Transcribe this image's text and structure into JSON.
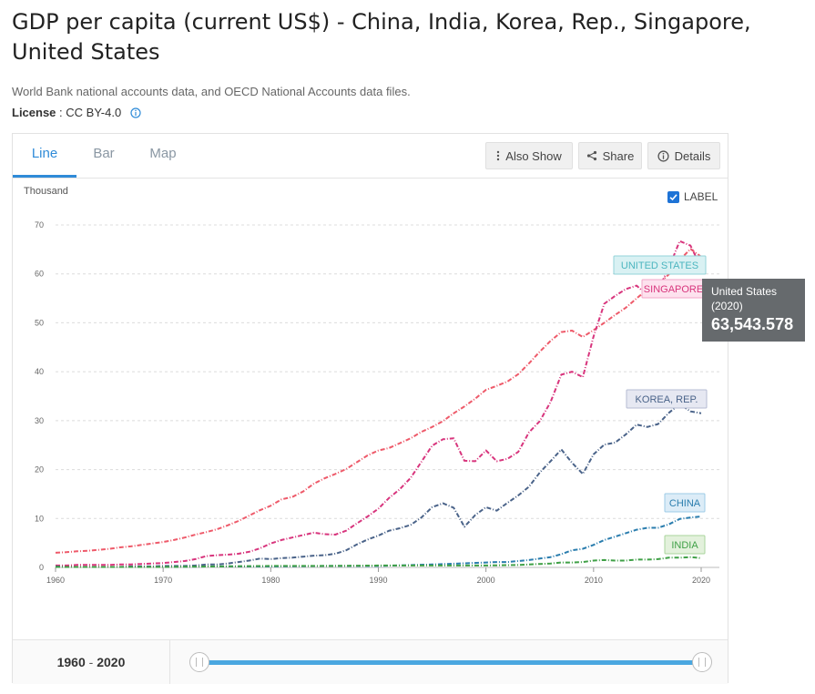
{
  "header": {
    "title": "GDP per capita (current US$) - China, India, Korea, Rep., Singapore, United States",
    "source": "World Bank national accounts data, and OECD National Accounts data files.",
    "license_label": "License",
    "license_sep": " : ",
    "license_value": "CC BY-4.0",
    "info_icon": "info-circle-icon"
  },
  "tabs": [
    {
      "label": "Line",
      "active": true
    },
    {
      "label": "Bar",
      "active": false
    },
    {
      "label": "Map",
      "active": false
    }
  ],
  "toolbar": {
    "also_show": "Also Show",
    "share": "Share",
    "details": "Details",
    "also_show_icon": "vertical-dots-icon",
    "share_icon": "share-icon",
    "details_icon": "info-circle-icon"
  },
  "label_toggle": {
    "label": "LABEL",
    "checked": true
  },
  "range": {
    "start": "1960",
    "sep": " - ",
    "end": "2020"
  },
  "tooltip": {
    "name": "United States",
    "year": "(2020)",
    "value": "63,543.578"
  },
  "chart_data": {
    "type": "line",
    "title": "",
    "xlabel": "",
    "ylabel": "Thousand",
    "xlim": [
      1960,
      2020
    ],
    "ylim": [
      0,
      70
    ],
    "x_ticks": [
      "1960",
      "1970",
      "1980",
      "1990",
      "2000",
      "2010",
      "2020"
    ],
    "y_ticks": [
      "0",
      "10",
      "20",
      "30",
      "40",
      "50",
      "60",
      "70"
    ],
    "grid": "horizontal dashed",
    "series": [
      {
        "name": "UNITED STATES",
        "color": "#ee5a6a",
        "label_bg": "#d9f1f3",
        "label_border": "#93d3d8",
        "label_color": "#4bb5bf",
        "values": [
          [
            1960,
            3.0
          ],
          [
            1961,
            3.1
          ],
          [
            1962,
            3.3
          ],
          [
            1963,
            3.4
          ],
          [
            1964,
            3.6
          ],
          [
            1965,
            3.8
          ],
          [
            1966,
            4.1
          ],
          [
            1967,
            4.3
          ],
          [
            1968,
            4.6
          ],
          [
            1969,
            4.9
          ],
          [
            1970,
            5.2
          ],
          [
            1971,
            5.6
          ],
          [
            1972,
            6.1
          ],
          [
            1973,
            6.7
          ],
          [
            1974,
            7.2
          ],
          [
            1975,
            7.8
          ],
          [
            1976,
            8.6
          ],
          [
            1977,
            9.5
          ],
          [
            1978,
            10.6
          ],
          [
            1979,
            11.7
          ],
          [
            1980,
            12.6
          ],
          [
            1981,
            13.9
          ],
          [
            1982,
            14.4
          ],
          [
            1983,
            15.5
          ],
          [
            1984,
            17.1
          ],
          [
            1985,
            18.2
          ],
          [
            1986,
            19.1
          ],
          [
            1987,
            20.1
          ],
          [
            1988,
            21.5
          ],
          [
            1989,
            22.9
          ],
          [
            1990,
            23.9
          ],
          [
            1991,
            24.4
          ],
          [
            1992,
            25.4
          ],
          [
            1993,
            26.4
          ],
          [
            1994,
            27.7
          ],
          [
            1995,
            28.7
          ],
          [
            1996,
            29.9
          ],
          [
            1997,
            31.5
          ],
          [
            1998,
            32.9
          ],
          [
            1999,
            34.5
          ],
          [
            2000,
            36.3
          ],
          [
            2001,
            37.1
          ],
          [
            2002,
            38.0
          ],
          [
            2003,
            39.5
          ],
          [
            2004,
            41.7
          ],
          [
            2005,
            44.1
          ],
          [
            2006,
            46.3
          ],
          [
            2007,
            48.1
          ],
          [
            2008,
            48.4
          ],
          [
            2009,
            47.1
          ],
          [
            2010,
            48.5
          ],
          [
            2011,
            50.0
          ],
          [
            2012,
            51.6
          ],
          [
            2013,
            53.1
          ],
          [
            2014,
            55.0
          ],
          [
            2015,
            56.8
          ],
          [
            2016,
            57.9
          ],
          [
            2017,
            59.9
          ],
          [
            2018,
            62.8
          ],
          [
            2019,
            65.1
          ],
          [
            2020,
            63.5
          ]
        ]
      },
      {
        "name": "SINGAPORE",
        "color": "#d8357d",
        "label_bg": "#fde2ee",
        "label_border": "#f2a7c8",
        "label_color": "#d8357d",
        "values": [
          [
            1960,
            0.4
          ],
          [
            1961,
            0.4
          ],
          [
            1962,
            0.5
          ],
          [
            1963,
            0.5
          ],
          [
            1964,
            0.5
          ],
          [
            1965,
            0.5
          ],
          [
            1966,
            0.6
          ],
          [
            1967,
            0.6
          ],
          [
            1968,
            0.7
          ],
          [
            1969,
            0.8
          ],
          [
            1970,
            0.9
          ],
          [
            1971,
            1.1
          ],
          [
            1972,
            1.3
          ],
          [
            1973,
            1.7
          ],
          [
            1974,
            2.3
          ],
          [
            1975,
            2.5
          ],
          [
            1976,
            2.6
          ],
          [
            1977,
            2.8
          ],
          [
            1978,
            3.2
          ],
          [
            1979,
            3.9
          ],
          [
            1980,
            4.9
          ],
          [
            1981,
            5.6
          ],
          [
            1982,
            6.1
          ],
          [
            1983,
            6.6
          ],
          [
            1984,
            7.1
          ],
          [
            1985,
            6.8
          ],
          [
            1986,
            6.7
          ],
          [
            1987,
            7.5
          ],
          [
            1988,
            9.0
          ],
          [
            1989,
            10.4
          ],
          [
            1990,
            12.0
          ],
          [
            1991,
            14.2
          ],
          [
            1992,
            16.0
          ],
          [
            1993,
            18.3
          ],
          [
            1994,
            21.6
          ],
          [
            1995,
            24.9
          ],
          [
            1996,
            26.2
          ],
          [
            1997,
            26.4
          ],
          [
            1998,
            21.8
          ],
          [
            1999,
            21.7
          ],
          [
            2000,
            23.9
          ],
          [
            2001,
            21.7
          ],
          [
            2002,
            22.2
          ],
          [
            2003,
            23.6
          ],
          [
            2004,
            27.6
          ],
          [
            2005,
            29.9
          ],
          [
            2006,
            33.8
          ],
          [
            2007,
            39.4
          ],
          [
            2008,
            40.0
          ],
          [
            2009,
            38.9
          ],
          [
            2010,
            47.2
          ],
          [
            2011,
            53.9
          ],
          [
            2012,
            55.5
          ],
          [
            2013,
            56.9
          ],
          [
            2014,
            57.6
          ],
          [
            2015,
            55.6
          ],
          [
            2016,
            56.8
          ],
          [
            2017,
            61.2
          ],
          [
            2018,
            66.7
          ],
          [
            2019,
            65.8
          ],
          [
            2020,
            61.3
          ]
        ]
      },
      {
        "name": "KOREA, REP.",
        "color": "#4a6389",
        "label_bg": "#e6e8f2",
        "label_border": "#b6bbd3",
        "label_color": "#4a6389",
        "values": [
          [
            1960,
            0.2
          ],
          [
            1961,
            0.1
          ],
          [
            1962,
            0.1
          ],
          [
            1963,
            0.1
          ],
          [
            1964,
            0.1
          ],
          [
            1965,
            0.1
          ],
          [
            1966,
            0.1
          ],
          [
            1967,
            0.2
          ],
          [
            1968,
            0.2
          ],
          [
            1969,
            0.2
          ],
          [
            1970,
            0.3
          ],
          [
            1971,
            0.3
          ],
          [
            1972,
            0.3
          ],
          [
            1973,
            0.4
          ],
          [
            1974,
            0.6
          ],
          [
            1975,
            0.6
          ],
          [
            1976,
            0.8
          ],
          [
            1977,
            1.1
          ],
          [
            1978,
            1.4
          ],
          [
            1979,
            1.8
          ],
          [
            1980,
            1.7
          ],
          [
            1981,
            1.9
          ],
          [
            1982,
            2.0
          ],
          [
            1983,
            2.2
          ],
          [
            1984,
            2.4
          ],
          [
            1985,
            2.5
          ],
          [
            1986,
            2.8
          ],
          [
            1987,
            3.5
          ],
          [
            1988,
            4.7
          ],
          [
            1989,
            5.7
          ],
          [
            1990,
            6.5
          ],
          [
            1991,
            7.5
          ],
          [
            1992,
            8.0
          ],
          [
            1993,
            8.7
          ],
          [
            1994,
            10.2
          ],
          [
            1995,
            12.3
          ],
          [
            1996,
            13.1
          ],
          [
            1997,
            12.2
          ],
          [
            1998,
            8.3
          ],
          [
            1999,
            10.7
          ],
          [
            2000,
            12.3
          ],
          [
            2001,
            11.6
          ],
          [
            2002,
            13.2
          ],
          [
            2003,
            14.7
          ],
          [
            2004,
            16.5
          ],
          [
            2005,
            19.4
          ],
          [
            2006,
            21.7
          ],
          [
            2007,
            24.1
          ],
          [
            2008,
            21.4
          ],
          [
            2009,
            19.1
          ],
          [
            2010,
            23.1
          ],
          [
            2011,
            25.1
          ],
          [
            2012,
            25.5
          ],
          [
            2013,
            27.2
          ],
          [
            2014,
            29.2
          ],
          [
            2015,
            28.7
          ],
          [
            2016,
            29.3
          ],
          [
            2017,
            31.6
          ],
          [
            2018,
            33.4
          ],
          [
            2019,
            31.9
          ],
          [
            2020,
            31.5
          ]
        ]
      },
      {
        "name": "CHINA",
        "color": "#2a7dae",
        "label_bg": "#dcecf7",
        "label_border": "#9ccbe7",
        "label_color": "#2a7dae",
        "values": [
          [
            1960,
            0.1
          ],
          [
            1965,
            0.1
          ],
          [
            1970,
            0.1
          ],
          [
            1975,
            0.2
          ],
          [
            1980,
            0.2
          ],
          [
            1985,
            0.3
          ],
          [
            1990,
            0.3
          ],
          [
            1995,
            0.6
          ],
          [
            2000,
            1.0
          ],
          [
            2001,
            1.1
          ],
          [
            2002,
            1.1
          ],
          [
            2003,
            1.3
          ],
          [
            2004,
            1.5
          ],
          [
            2005,
            1.8
          ],
          [
            2006,
            2.1
          ],
          [
            2007,
            2.7
          ],
          [
            2008,
            3.5
          ],
          [
            2009,
            3.8
          ],
          [
            2010,
            4.6
          ],
          [
            2011,
            5.6
          ],
          [
            2012,
            6.3
          ],
          [
            2013,
            7.0
          ],
          [
            2014,
            7.7
          ],
          [
            2015,
            8.1
          ],
          [
            2016,
            8.1
          ],
          [
            2017,
            8.8
          ],
          [
            2018,
            9.9
          ],
          [
            2019,
            10.2
          ],
          [
            2020,
            10.4
          ]
        ]
      },
      {
        "name": "INDIA",
        "color": "#3fa046",
        "label_bg": "#e3f1dc",
        "label_border": "#a9d59c",
        "label_color": "#3fa046",
        "values": [
          [
            1960,
            0.1
          ],
          [
            1965,
            0.1
          ],
          [
            1970,
            0.1
          ],
          [
            1975,
            0.2
          ],
          [
            1980,
            0.3
          ],
          [
            1985,
            0.3
          ],
          [
            1990,
            0.4
          ],
          [
            1995,
            0.4
          ],
          [
            2000,
            0.4
          ],
          [
            2003,
            0.5
          ],
          [
            2005,
            0.7
          ],
          [
            2006,
            0.8
          ],
          [
            2007,
            1.0
          ],
          [
            2008,
            1.0
          ],
          [
            2009,
            1.1
          ],
          [
            2010,
            1.4
          ],
          [
            2011,
            1.5
          ],
          [
            2012,
            1.4
          ],
          [
            2013,
            1.4
          ],
          [
            2014,
            1.6
          ],
          [
            2015,
            1.6
          ],
          [
            2016,
            1.7
          ],
          [
            2017,
            2.0
          ],
          [
            2018,
            2.0
          ],
          [
            2019,
            2.1
          ],
          [
            2020,
            1.9
          ]
        ]
      }
    ]
  }
}
